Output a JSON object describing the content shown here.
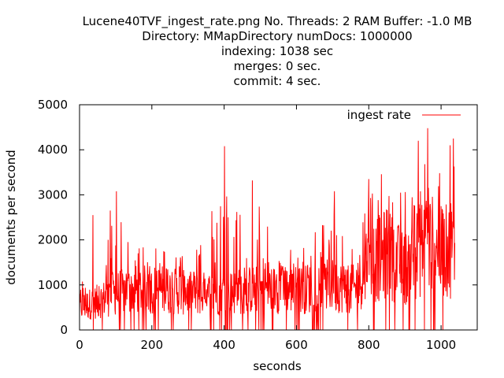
{
  "chart_data": {
    "type": "line",
    "title_lines": [
      "Lucene40TVF_ingest_rate.png No. Threads: 2 RAM Buffer: -1.0 MB",
      "Directory: MMapDirectory numDocs: 1000000",
      "indexing: 1038 sec",
      "merges: 0 sec.",
      "commit: 4 sec."
    ],
    "xlabel": "seconds",
    "ylabel": "documents per second",
    "xlim": [
      0,
      1100
    ],
    "ylim": [
      0,
      5000
    ],
    "xticks": [
      0,
      200,
      400,
      600,
      800,
      1000
    ],
    "yticks": [
      0,
      1000,
      2000,
      3000,
      4000,
      5000
    ],
    "x_tick_labels": [
      "0",
      "200",
      "400",
      "600",
      "800",
      "1000"
    ],
    "y_tick_labels": [
      "0",
      "1000",
      "2000",
      "3000",
      "4000",
      "5000"
    ],
    "grid": false,
    "legend_position": "top-right",
    "series": [
      {
        "name": "ingest rate",
        "color": "#ff0000",
        "x_range": [
          0,
          1038
        ],
        "envelope": [
          {
            "x": 0,
            "typical": 550,
            "peak": 800
          },
          {
            "x": 30,
            "typical": 650,
            "peak": 2600
          },
          {
            "x": 50,
            "typical": 700,
            "peak": 1200
          },
          {
            "x": 100,
            "typical": 900,
            "peak": 3100
          },
          {
            "x": 150,
            "typical": 1000,
            "peak": 1900
          },
          {
            "x": 230,
            "typical": 1000,
            "peak": 2000
          },
          {
            "x": 300,
            "typical": 900,
            "peak": 1800
          },
          {
            "x": 400,
            "typical": 900,
            "peak": 4100
          },
          {
            "x": 480,
            "typical": 1000,
            "peak": 3300
          },
          {
            "x": 550,
            "typical": 1000,
            "peak": 2000
          },
          {
            "x": 620,
            "typical": 1000,
            "peak": 2000
          },
          {
            "x": 700,
            "typical": 1100,
            "peak": 3100
          },
          {
            "x": 760,
            "typical": 1000,
            "peak": 2200
          },
          {
            "x": 800,
            "typical": 1600,
            "peak": 3300
          },
          {
            "x": 850,
            "typical": 1900,
            "peak": 3800
          },
          {
            "x": 900,
            "typical": 1500,
            "peak": 3500
          },
          {
            "x": 960,
            "typical": 2200,
            "peak": 4500
          },
          {
            "x": 1000,
            "typical": 1900,
            "peak": 4000
          },
          {
            "x": 1038,
            "typical": 2000,
            "peak": 4200
          }
        ],
        "notable_points": [
          {
            "x": 37,
            "y": 2550
          },
          {
            "x": 85,
            "y": 2650
          },
          {
            "x": 102,
            "y": 3080
          },
          {
            "x": 401,
            "y": 4080
          },
          {
            "x": 478,
            "y": 3320
          },
          {
            "x": 705,
            "y": 3080
          },
          {
            "x": 800,
            "y": 3350
          },
          {
            "x": 937,
            "y": 4200
          },
          {
            "x": 963,
            "y": 4480
          },
          {
            "x": 1025,
            "y": 4100
          },
          {
            "x": 1034,
            "y": 4250
          }
        ]
      }
    ]
  }
}
